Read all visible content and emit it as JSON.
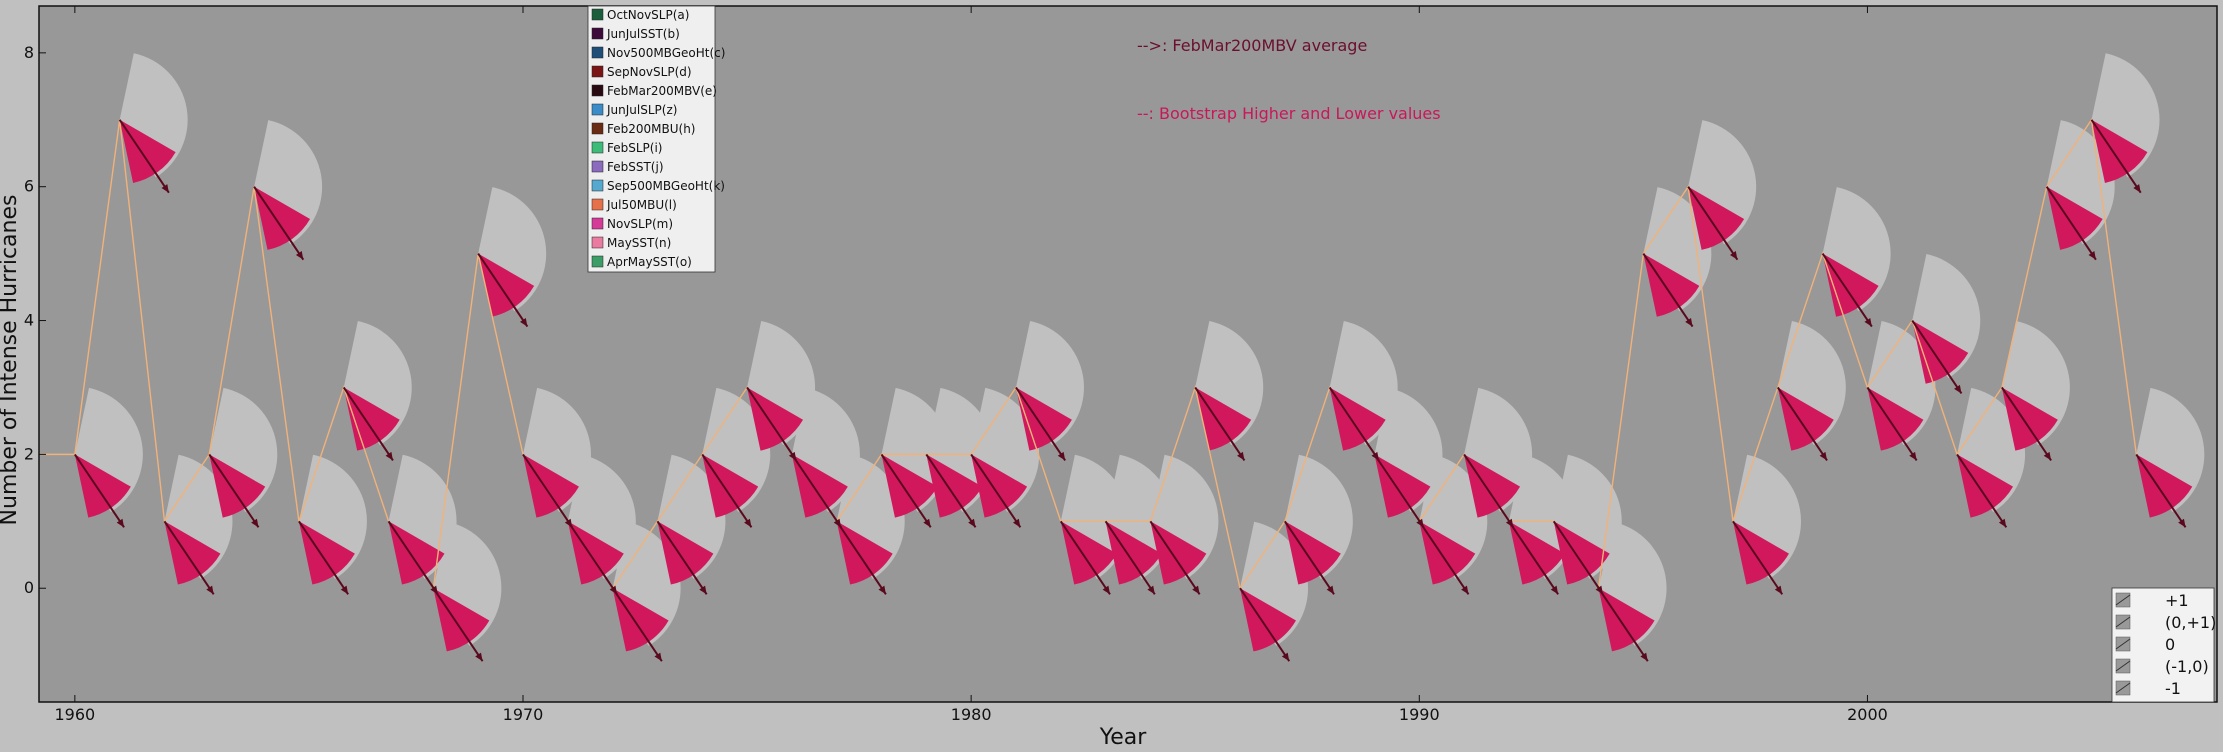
{
  "chart_data": {
    "type": "line",
    "xlabel": "Year",
    "ylabel": "Number of Intense Hurricanes",
    "xlim": [
      1959.2,
      2007.8
    ],
    "ylim": [
      -1.7,
      8.7
    ],
    "x_ticks": [
      1960,
      1970,
      1980,
      1990,
      2000
    ],
    "y_ticks": [
      0,
      2,
      4,
      6,
      8
    ],
    "grid": false,
    "line_color": "#f0b27a",
    "background_color": "#989898",
    "fan_color": "#c0c0c0",
    "wedge_color": "#d1185c",
    "arrow_color": "#5a0a1e",
    "years": [
      1960,
      1961,
      1962,
      1963,
      1964,
      1965,
      1966,
      1967,
      1968,
      1969,
      1970,
      1971,
      1972,
      1973,
      1974,
      1975,
      1976,
      1977,
      1978,
      1979,
      1980,
      1981,
      1982,
      1983,
      1984,
      1985,
      1986,
      1987,
      1988,
      1989,
      1990,
      1991,
      1992,
      1993,
      1994,
      1995,
      1996,
      1997,
      1998,
      1999,
      2000,
      2001,
      2002,
      2003,
      2004,
      2005,
      2006
    ],
    "series": [
      {
        "name": "",
        "values": [
          2,
          7,
          1,
          2,
          6,
          1,
          3,
          1,
          0,
          5,
          2,
          1,
          0,
          1,
          2,
          3,
          2,
          1,
          2,
          2,
          2,
          3,
          1,
          1,
          1,
          3,
          0,
          1,
          3,
          2,
          1,
          2,
          1,
          1,
          0,
          5,
          6,
          1,
          3,
          5,
          3,
          4,
          2,
          3,
          6,
          7,
          2
        ]
      }
    ],
    "legend": {
      "placement": "top-left",
      "entries": [
        {
          "label": "OctNovSLP(a)",
          "color": "#1b5e3b"
        },
        {
          "label": "JunJulSST(b)",
          "color": "#3d0a3a"
        },
        {
          "label": "Nov500MBGeoHt(c)",
          "color": "#1f4e79"
        },
        {
          "label": "SepNovSLP(d)",
          "color": "#7b1515"
        },
        {
          "label": "FebMar200MBV(e)",
          "color": "#2a0a12"
        },
        {
          "label": "JunJulSLP(z)",
          "color": "#3a8cc8"
        },
        {
          "label": "Feb200MBU(h)",
          "color": "#6b2a12"
        },
        {
          "label": "FebSLP(i)",
          "color": "#3dbb78"
        },
        {
          "label": "FebSST(j)",
          "color": "#8a6bbd"
        },
        {
          "label": "Sep500MBGeoHt(k)",
          "color": "#55a8cf"
        },
        {
          "label": "Jul50MBU(l)",
          "color": "#e5704a"
        },
        {
          "label": "NovSLP(m)",
          "color": "#d63a98"
        },
        {
          "label": "MaySST(n)",
          "color": "#ea7aa0"
        },
        {
          "label": "AprMaySST(o)",
          "color": "#3c9e66"
        }
      ]
    },
    "annotations": [
      {
        "text": "-->: FebMar200MBV average",
        "color": "#6b0f2e"
      },
      {
        "text": "--: Bootstrap Higher and Lower values",
        "color": "#c8185a"
      }
    ],
    "arrow_key": {
      "placement": "bottom-right",
      "entries": [
        "+1",
        "(0,+1)",
        "0",
        "(-1,0)",
        "-1"
      ]
    }
  }
}
